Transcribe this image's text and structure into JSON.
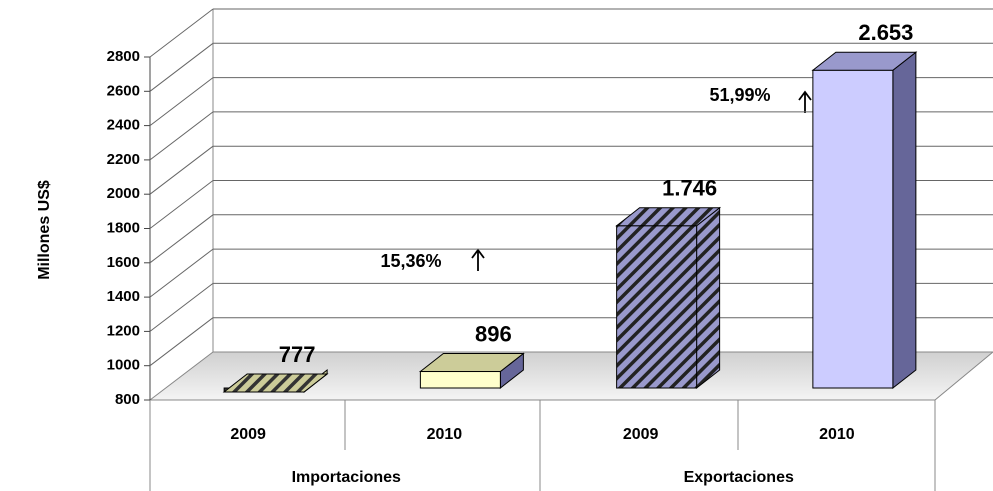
{
  "chart_data": {
    "type": "bar3d",
    "y_label": "Millones US$",
    "categories": [
      "2009",
      "2010",
      "2009",
      "2010"
    ],
    "groups": [
      "Importaciones",
      "Exportaciones"
    ],
    "values": [
      777,
      896,
      1746,
      2653
    ],
    "value_labels": [
      "777",
      "896",
      "1.746",
      "2.653"
    ],
    "colors": [
      "#cccc99",
      "#ffffcc",
      "#9999cc",
      "#ccccff"
    ],
    "hatched": [
      true,
      false,
      true,
      false
    ],
    "annotations": [
      "15,36%",
      "51,99%"
    ],
    "ylim": [
      800,
      2800
    ],
    "yticks": [
      800,
      1000,
      1200,
      1400,
      1600,
      1800,
      2000,
      2200,
      2400,
      2600,
      2800
    ],
    "grid": true
  }
}
